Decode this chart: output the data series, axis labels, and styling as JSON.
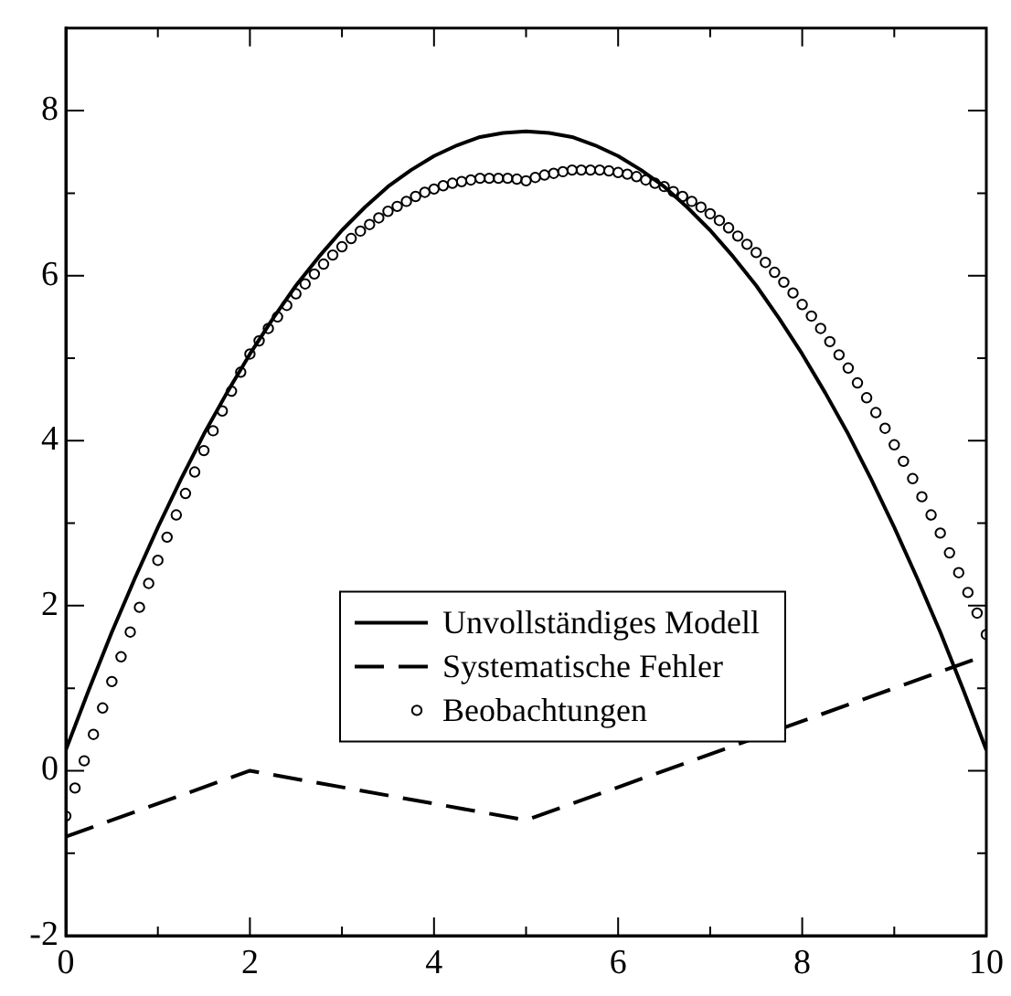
{
  "chart_data": {
    "type": "line",
    "xlim": [
      0,
      10
    ],
    "ylim": [
      -2,
      9
    ],
    "xticks": [
      0,
      {
        "value": 1,
        "label": null
      },
      2,
      {
        "value": 3,
        "label": null
      },
      4,
      {
        "value": 5,
        "label": null
      },
      6,
      {
        "value": 7,
        "label": null
      },
      8,
      {
        "value": 9,
        "label": null
      },
      10
    ],
    "yticks": [
      -2,
      {
        "value": -1,
        "label": null
      },
      0,
      {
        "value": 1,
        "label": null
      },
      2,
      {
        "value": 3,
        "label": null
      },
      4,
      {
        "value": 5,
        "label": null
      },
      6,
      {
        "value": 7,
        "label": null
      },
      8
    ],
    "grid": false,
    "legend": "center",
    "series": [
      {
        "name": "Unvollständiges Modell",
        "color": "#000000",
        "line_style": "solid",
        "marker": "none",
        "x": [
          0,
          0.25,
          0.5,
          0.75,
          1,
          1.25,
          1.5,
          1.75,
          2,
          2.25,
          2.5,
          2.75,
          3,
          3.25,
          3.5,
          3.75,
          4,
          4.25,
          4.5,
          4.75,
          5,
          5.25,
          5.5,
          5.75,
          6,
          6.25,
          6.5,
          6.75,
          7,
          7.25,
          7.5,
          7.75,
          8,
          8.25,
          8.5,
          8.75,
          9,
          9.25,
          9.5,
          9.75,
          10
        ],
        "values": [
          0.25,
          0.98,
          1.68,
          2.33,
          2.95,
          3.53,
          4.08,
          4.58,
          5.05,
          5.48,
          5.88,
          6.23,
          6.55,
          6.83,
          7.08,
          7.28,
          7.45,
          7.58,
          7.68,
          7.73,
          7.75,
          7.73,
          7.68,
          7.58,
          7.45,
          7.28,
          7.08,
          6.83,
          6.55,
          6.23,
          5.88,
          5.48,
          5.05,
          4.58,
          4.08,
          3.53,
          2.95,
          2.33,
          1.68,
          0.98,
          0.25
        ]
      },
      {
        "name": "Systematische Fehler",
        "color": "#000000",
        "line_style": "dashed",
        "marker": "none",
        "x": [
          0,
          2,
          5,
          10
        ],
        "values": [
          -0.8,
          0,
          -0.6,
          1.4
        ]
      },
      {
        "name": "Beobachtungen",
        "color": "#000000",
        "type": "scatter",
        "marker": "circle",
        "x": [
          0,
          0.1,
          0.2,
          0.3,
          0.4,
          0.5,
          0.6,
          0.7,
          0.8,
          0.9,
          1,
          1.1,
          1.2,
          1.3,
          1.4,
          1.5,
          1.6,
          1.7,
          1.8,
          1.9,
          2,
          2.1,
          2.2,
          2.3,
          2.4,
          2.5,
          2.6,
          2.7,
          2.8,
          2.9,
          3,
          3.1,
          3.2,
          3.3,
          3.4,
          3.5,
          3.6,
          3.7,
          3.8,
          3.9,
          4,
          4.1,
          4.2,
          4.3,
          4.4,
          4.5,
          4.6,
          4.7,
          4.8,
          4.9,
          5,
          5.1,
          5.2,
          5.3,
          5.4,
          5.5,
          5.6,
          5.7,
          5.8,
          5.9,
          6,
          6.1,
          6.2,
          6.3,
          6.4,
          6.5,
          6.6,
          6.7,
          6.8,
          6.9,
          7,
          7.1,
          7.2,
          7.3,
          7.4,
          7.5,
          7.6,
          7.7,
          7.8,
          7.9,
          8,
          8.1,
          8.2,
          8.3,
          8.4,
          8.5,
          8.6,
          8.7,
          8.8,
          8.9,
          9,
          9.1,
          9.2,
          9.3,
          9.4,
          9.5,
          9.6,
          9.7,
          9.8,
          9.9,
          10
        ],
        "values": [
          -0.55,
          -0.21,
          0.12,
          0.44,
          0.76,
          1.08,
          1.38,
          1.68,
          1.98,
          2.27,
          2.55,
          2.83,
          3.1,
          3.36,
          3.62,
          3.88,
          4.12,
          4.36,
          4.6,
          4.83,
          5.05,
          5.21,
          5.36,
          5.5,
          5.64,
          5.78,
          5.9,
          6.02,
          6.14,
          6.25,
          6.35,
          6.45,
          6.54,
          6.62,
          6.7,
          6.78,
          6.84,
          6.9,
          6.96,
          7.01,
          7.05,
          7.09,
          7.12,
          7.14,
          7.16,
          7.18,
          7.18,
          7.18,
          7.18,
          7.17,
          7.15,
          7.19,
          7.22,
          7.24,
          7.26,
          7.28,
          7.28,
          7.28,
          7.28,
          7.27,
          7.25,
          7.23,
          7.2,
          7.16,
          7.12,
          7.08,
          7.02,
          6.96,
          6.9,
          6.83,
          6.75,
          6.67,
          6.58,
          6.48,
          6.38,
          6.28,
          6.16,
          6.04,
          5.92,
          5.79,
          5.65,
          5.51,
          5.36,
          5.2,
          5.04,
          4.88,
          4.7,
          4.52,
          4.34,
          4.15,
          3.95,
          3.75,
          3.54,
          3.32,
          3.1,
          2.88,
          2.64,
          2.4,
          2.16,
          1.91,
          1.65
        ]
      }
    ]
  }
}
